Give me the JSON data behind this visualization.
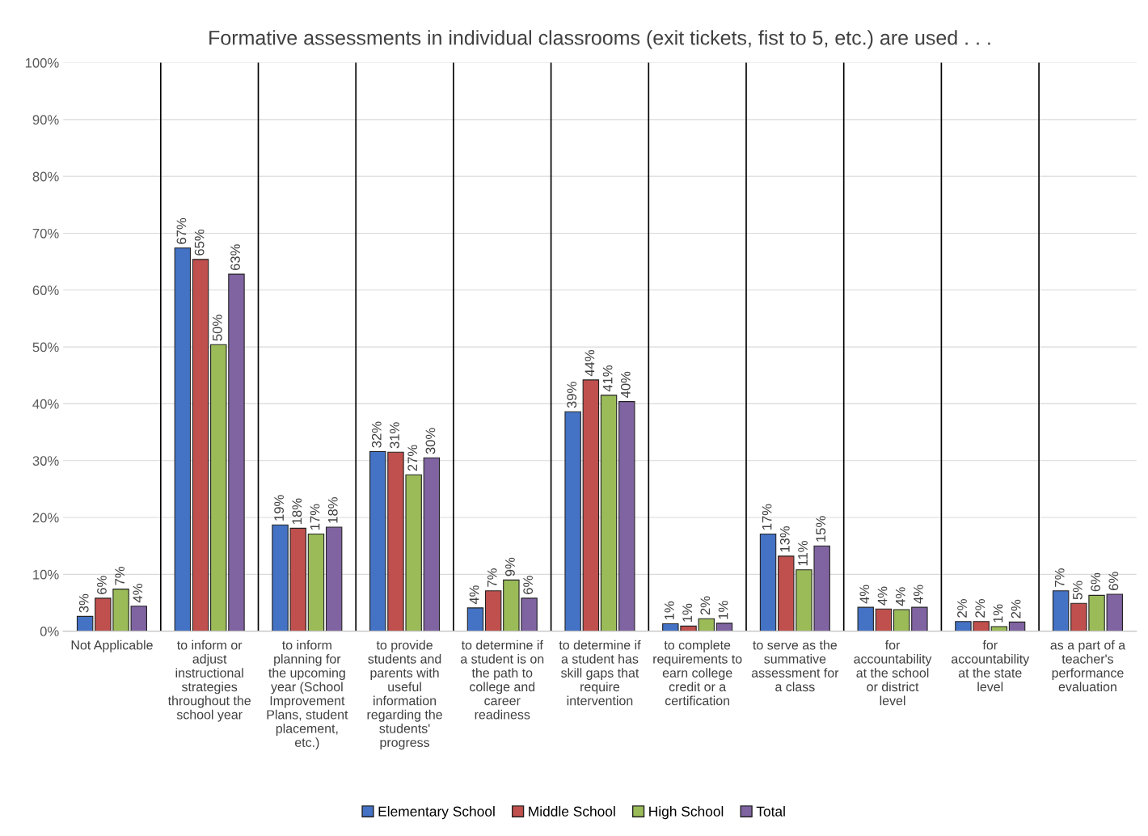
{
  "chart_data": {
    "type": "bar",
    "title": "Formative assessments in individual classrooms (exit tickets, fist to 5, etc.) are used . . .",
    "categories": [
      "Not Applicable",
      "to inform or adjust instructional strategies throughout the school year",
      "to inform planning for the upcoming year (School Improvement Plans, student placement, etc.)",
      "to provide students and parents with useful information regarding the students' progress",
      "to determine if a student is on the path to college and career readiness",
      "to determine if a student has skill gaps that require intervention",
      "to complete requirements to earn college credit or a certification",
      "to serve as the summative assessment for a class",
      "for accountability at the school or district level",
      "for accountability at the state level",
      "as a part of a teacher's performance evaluation"
    ],
    "series": [
      {
        "name": "Elementary School",
        "color": "#4472c4",
        "values": [
          2.6,
          67.4,
          18.7,
          31.6,
          4.1,
          38.6,
          1.3,
          17.1,
          4.2,
          1.7,
          7.1
        ],
        "value_labels": [
          "3%",
          "67%",
          "19%",
          "32%",
          "4%",
          "39%",
          "1%",
          "17%",
          "4%",
          "2%",
          "7%"
        ]
      },
      {
        "name": "Middle School",
        "color": "#c0504d",
        "values": [
          5.8,
          65.4,
          18.1,
          31.5,
          7.1,
          44.2,
          0.9,
          13.2,
          3.9,
          1.7,
          4.9
        ],
        "value_labels": [
          "6%",
          "65%",
          "18%",
          "31%",
          "7%",
          "44%",
          "1%",
          "13%",
          "4%",
          "2%",
          "5%"
        ]
      },
      {
        "name": "High School",
        "color": "#9bbb59",
        "values": [
          7.4,
          50.4,
          17.1,
          27.5,
          9.0,
          41.5,
          2.2,
          10.8,
          3.8,
          0.8,
          6.3
        ],
        "value_labels": [
          "7%",
          "50%",
          "17%",
          "27%",
          "9%",
          "41%",
          "2%",
          "11%",
          "4%",
          "1%",
          "6%"
        ]
      },
      {
        "name": "Total",
        "color": "#8064a2",
        "values": [
          4.4,
          62.8,
          18.3,
          30.5,
          5.8,
          40.4,
          1.4,
          15.0,
          4.2,
          1.6,
          6.5
        ],
        "value_labels": [
          "4%",
          "63%",
          "18%",
          "30%",
          "6%",
          "40%",
          "1%",
          "15%",
          "4%",
          "2%",
          "6%"
        ]
      }
    ],
    "ylim": [
      0,
      100
    ],
    "yticks": [
      {
        "value": 0,
        "label": "0%"
      },
      {
        "value": 10,
        "label": "10%"
      },
      {
        "value": 20,
        "label": "20%"
      },
      {
        "value": 30,
        "label": "30%"
      },
      {
        "value": 40,
        "label": "40%"
      },
      {
        "value": 50,
        "label": "50%"
      },
      {
        "value": 60,
        "label": "60%"
      },
      {
        "value": 70,
        "label": "70%"
      },
      {
        "value": 80,
        "label": "80%"
      },
      {
        "value": 90,
        "label": "90%"
      },
      {
        "value": 100,
        "label": "100%"
      }
    ],
    "grid": true,
    "legend": "bottom"
  }
}
